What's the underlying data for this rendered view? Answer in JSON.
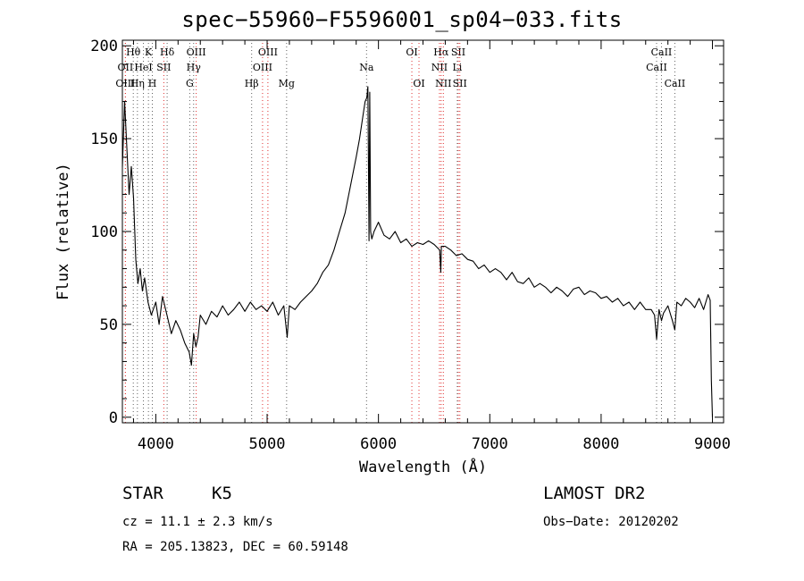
{
  "title": "spec−55960−F5596001_sp04−033.fits",
  "info": {
    "object_class": "STAR",
    "subclass": "K5",
    "survey": "LAMOST DR2",
    "cz": "cz = 11.1 ± 2.3 km/s",
    "obs_date": "Obs−Date: 20120202",
    "radec": "RA = 205.13823, DEC =  60.59148"
  },
  "colors": {
    "axis": "#000000",
    "line": "#000000",
    "emission_marker": "#e03030",
    "absorption_marker": "#606060"
  },
  "chart_data": {
    "type": "line",
    "title": "spec−55960−F5596001_sp04−033.fits",
    "xlabel": "Wavelength (Å)",
    "ylabel": "Flux (relative)",
    "xlim": [
      3700,
      9100
    ],
    "ylim": [
      -3,
      203
    ],
    "xticks": [
      4000,
      5000,
      6000,
      7000,
      8000,
      9000
    ],
    "yticks": [
      0,
      50,
      100,
      150,
      200
    ],
    "grid": false,
    "series": [
      {
        "x": [
          3700,
          3720,
          3740,
          3760,
          3780,
          3800,
          3820,
          3840,
          3860,
          3880,
          3900,
          3930,
          3960,
          4000,
          4030,
          4060,
          4100,
          4140,
          4180,
          4220,
          4260,
          4300,
          4320,
          4340,
          4360,
          4380,
          4400,
          4450,
          4500,
          4550,
          4600,
          4650,
          4700,
          4750,
          4800,
          4850,
          4900,
          4950,
          5000,
          5050,
          5100,
          5150,
          5180,
          5200,
          5250,
          5300,
          5350,
          5400,
          5450,
          5500,
          5550,
          5600,
          5650,
          5700,
          5750,
          5800,
          5830,
          5860,
          5880,
          5895,
          5905,
          5915,
          5922,
          5930,
          5940,
          5960,
          6000,
          6050,
          6100,
          6150,
          6200,
          6250,
          6300,
          6350,
          6400,
          6450,
          6500,
          6550,
          6560,
          6565,
          6600,
          6650,
          6700,
          6750,
          6800,
          6850,
          6900,
          6950,
          7000,
          7050,
          7100,
          7150,
          7200,
          7250,
          7300,
          7350,
          7400,
          7450,
          7500,
          7550,
          7600,
          7650,
          7700,
          7750,
          7800,
          7850,
          7900,
          7950,
          8000,
          8050,
          8100,
          8150,
          8200,
          8250,
          8300,
          8350,
          8400,
          8450,
          8480,
          8498,
          8520,
          8542,
          8560,
          8600,
          8640,
          8662,
          8680,
          8720,
          8760,
          8800,
          8840,
          8880,
          8920,
          8960,
          8980,
          8990,
          9000
        ],
        "y": [
          135,
          170,
          145,
          120,
          135,
          118,
          85,
          72,
          80,
          68,
          75,
          62,
          55,
          62,
          50,
          65,
          55,
          45,
          52,
          47,
          40,
          35,
          28,
          45,
          38,
          43,
          55,
          50,
          57,
          54,
          60,
          55,
          58,
          62,
          57,
          62,
          58,
          60,
          57,
          62,
          55,
          60,
          43,
          60,
          58,
          62,
          65,
          68,
          72,
          78,
          82,
          90,
          100,
          110,
          125,
          140,
          150,
          162,
          170,
          172,
          178,
          95,
          175,
          100,
          96,
          100,
          105,
          98,
          96,
          100,
          94,
          96,
          92,
          94,
          93,
          95,
          93,
          90,
          78,
          92,
          92,
          90,
          87,
          88,
          85,
          84,
          80,
          82,
          78,
          80,
          78,
          74,
          78,
          73,
          72,
          75,
          70,
          72,
          70,
          67,
          70,
          68,
          65,
          69,
          70,
          66,
          68,
          67,
          64,
          65,
          62,
          64,
          60,
          62,
          58,
          62,
          58,
          58,
          55,
          42,
          58,
          52,
          56,
          60,
          52,
          47,
          62,
          60,
          64,
          62,
          59,
          64,
          58,
          66,
          63,
          20,
          0
        ]
      }
    ],
    "line_markers": [
      {
        "label": "Hθ",
        "wavelength": 3798,
        "row": 1,
        "kind": "absorption"
      },
      {
        "label": "K",
        "wavelength": 3934,
        "row": 1,
        "kind": "absorption"
      },
      {
        "label": "Hδ",
        "wavelength": 4102,
        "row": 1,
        "kind": "absorption"
      },
      {
        "label": "OIII",
        "wavelength": 4363,
        "row": 1,
        "kind": "emission"
      },
      {
        "label": "OIII",
        "wavelength": 5007,
        "row": 1,
        "kind": "emission"
      },
      {
        "label": "OI",
        "wavelength": 6300,
        "row": 1,
        "kind": "emission"
      },
      {
        "label": "Hα",
        "wavelength": 6563,
        "row": 1,
        "kind": "emission"
      },
      {
        "label": "SII",
        "wavelength": 6717,
        "row": 1,
        "kind": "emission"
      },
      {
        "label": "CaII",
        "wavelength": 8542,
        "row": 1,
        "kind": "absorption"
      },
      {
        "label": "OII",
        "wavelength": 3727,
        "row": 2,
        "kind": "emission"
      },
      {
        "label": "HeI",
        "wavelength": 3889,
        "row": 2,
        "kind": "absorption"
      },
      {
        "label": "SII",
        "wavelength": 4072,
        "row": 2,
        "kind": "emission"
      },
      {
        "label": "Hγ",
        "wavelength": 4340,
        "row": 2,
        "kind": "absorption"
      },
      {
        "label": "OIII",
        "wavelength": 4959,
        "row": 2,
        "kind": "emission"
      },
      {
        "label": "Na",
        "wavelength": 5893,
        "row": 2,
        "kind": "absorption"
      },
      {
        "label": "NII",
        "wavelength": 6548,
        "row": 2,
        "kind": "emission"
      },
      {
        "label": "Li",
        "wavelength": 6708,
        "row": 2,
        "kind": "absorption"
      },
      {
        "label": "CaII",
        "wavelength": 8498,
        "row": 2,
        "kind": "absorption"
      },
      {
        "label": "OIII",
        "wavelength": 3727,
        "row": 3,
        "kind": "emission"
      },
      {
        "label": "Hη",
        "wavelength": 3835,
        "row": 3,
        "kind": "absorption"
      },
      {
        "label": "H",
        "wavelength": 3969,
        "row": 3,
        "kind": "absorption"
      },
      {
        "label": "G",
        "wavelength": 4305,
        "row": 3,
        "kind": "absorption"
      },
      {
        "label": "Hβ",
        "wavelength": 4861,
        "row": 3,
        "kind": "absorption"
      },
      {
        "label": "Mg",
        "wavelength": 5175,
        "row": 3,
        "kind": "absorption"
      },
      {
        "label": "OI",
        "wavelength": 6364,
        "row": 3,
        "kind": "emission"
      },
      {
        "label": "NII",
        "wavelength": 6583,
        "row": 3,
        "kind": "emission"
      },
      {
        "label": "SII",
        "wavelength": 6731,
        "row": 3,
        "kind": "emission"
      },
      {
        "label": "CaII",
        "wavelength": 8662,
        "row": 3,
        "kind": "absorption"
      }
    ]
  }
}
